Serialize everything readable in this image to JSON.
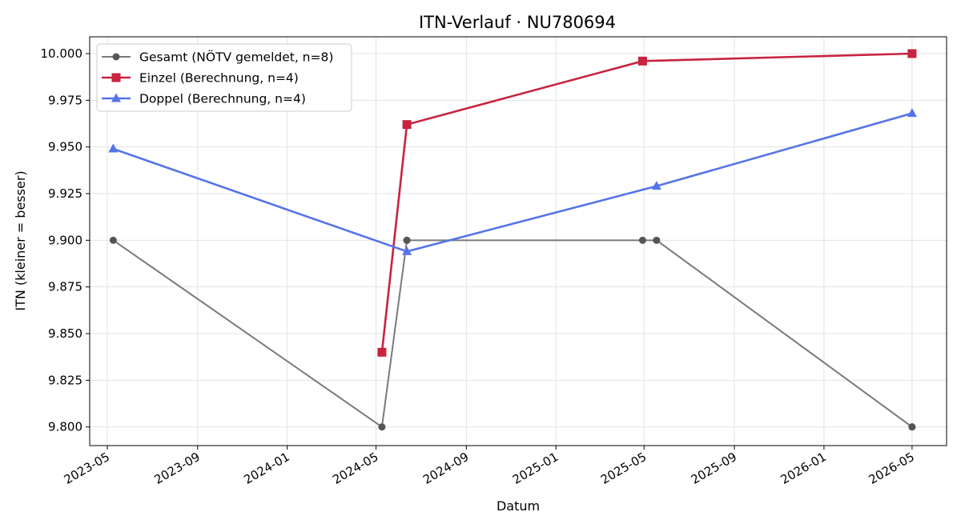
{
  "chart_data": {
    "type": "line",
    "title": "ITN-Verlauf · NU780694",
    "xlabel": "Datum",
    "ylabel": "ITN  (kleiner = besser)",
    "x_axis": {
      "type": "date",
      "range": [
        "2023-04-07",
        "2026-06-17"
      ],
      "ticks": [
        {
          "date": "2023-05-01",
          "label": "2023-05"
        },
        {
          "date": "2023-09-01",
          "label": "2023-09"
        },
        {
          "date": "2024-01-01",
          "label": "2024-01"
        },
        {
          "date": "2024-05-01",
          "label": "2024-05"
        },
        {
          "date": "2024-09-01",
          "label": "2024-09"
        },
        {
          "date": "2025-01-01",
          "label": "2025-01"
        },
        {
          "date": "2025-05-01",
          "label": "2025-05"
        },
        {
          "date": "2025-09-01",
          "label": "2025-09"
        },
        {
          "date": "2026-01-01",
          "label": "2026-01"
        },
        {
          "date": "2026-05-01",
          "label": "2026-05"
        }
      ]
    },
    "y_axis": {
      "range": [
        9.79,
        10.009
      ],
      "ticks": [
        "9.800",
        "9.825",
        "9.850",
        "9.875",
        "9.900",
        "9.925",
        "9.950",
        "9.975",
        "10.000"
      ]
    },
    "grid": true,
    "legend_position": "top-left",
    "series": [
      {
        "name": "Gesamt (NÖTV gemeldet, n=8)",
        "color": "#7a7a7a",
        "marker_color": "#555555",
        "marker": "circle",
        "points": [
          {
            "x": "2023-05-09",
            "y": 9.9
          },
          {
            "x": "2024-05-09",
            "y": 9.8
          },
          {
            "x": "2024-06-12",
            "y": 9.9
          },
          {
            "x": "2024-06-12",
            "y": 9.9
          },
          {
            "x": "2025-04-29",
            "y": 9.9
          },
          {
            "x": "2025-05-18",
            "y": 9.9
          },
          {
            "x": "2026-05-01",
            "y": 9.8
          },
          {
            "x": "2026-05-01",
            "y": 9.8
          }
        ]
      },
      {
        "name": "Einzel (Berechnung, n=4)",
        "color": "#c8233f",
        "marker": "square",
        "points": [
          {
            "x": "2024-05-09",
            "y": 9.84
          },
          {
            "x": "2024-06-12",
            "y": 9.962
          },
          {
            "x": "2025-04-29",
            "y": 9.996
          },
          {
            "x": "2026-05-01",
            "y": 10.0
          }
        ]
      },
      {
        "name": "Doppel (Berechnung, n=4)",
        "color": "#5574e8",
        "marker": "triangle",
        "points": [
          {
            "x": "2023-05-09",
            "y": 9.949
          },
          {
            "x": "2024-06-12",
            "y": 9.894
          },
          {
            "x": "2025-05-18",
            "y": 9.929
          },
          {
            "x": "2026-05-01",
            "y": 9.968
          }
        ]
      }
    ]
  }
}
